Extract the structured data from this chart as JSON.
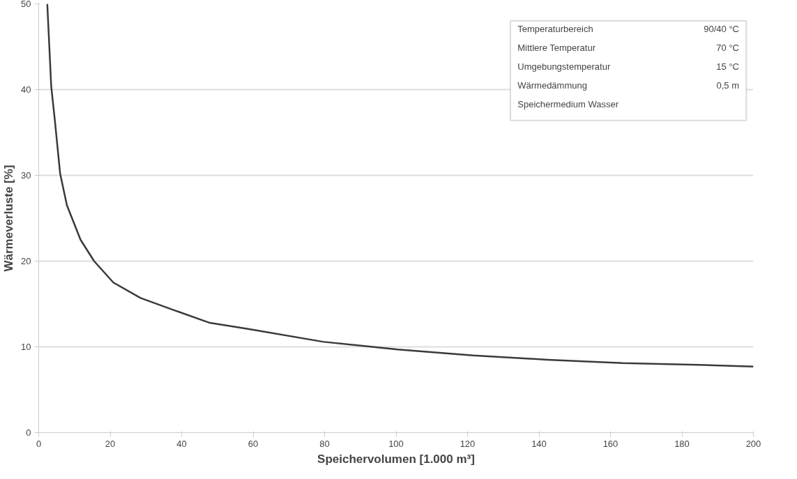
{
  "chart_data": {
    "type": "line",
    "xlabel": "Speichervolumen [1.000 m³]",
    "ylabel": "Wärmeverluste [%]",
    "x": [
      2.4,
      3.5,
      4.5,
      6.0,
      7.9,
      11.7,
      15.5,
      20.9,
      28.5,
      38.4,
      47.9,
      58.6,
      79.5,
      100.5,
      121.5,
      142.4,
      163.4,
      184.4,
      200
    ],
    "series": [
      {
        "color": "#3a3a3a",
        "values": [
          50,
          40.4,
          36.5,
          30.2,
          26.5,
          22.5,
          20.0,
          17.5,
          15.7,
          14.2,
          12.8,
          12.1,
          10.6,
          9.7,
          9.0,
          8.5,
          8.1,
          7.9,
          7.7
        ]
      }
    ],
    "xlim": [
      0,
      200
    ],
    "ylim": [
      0,
      50
    ],
    "xticks": [
      0,
      20,
      40,
      60,
      80,
      100,
      120,
      140,
      160,
      180,
      200
    ],
    "yticks": [
      0,
      10,
      20,
      30,
      40,
      50
    ],
    "grid": "y",
    "marker": "none",
    "line_style": "solid",
    "annotations": [
      "Temperaturbereich",
      "90/40 °C",
      "Mittlere Temperatur",
      "70 °C",
      "Umgebungstemperatur",
      "15 °C",
      "Wärmedämmung",
      "0,5 m",
      "Speichermedium Wasser"
    ]
  }
}
